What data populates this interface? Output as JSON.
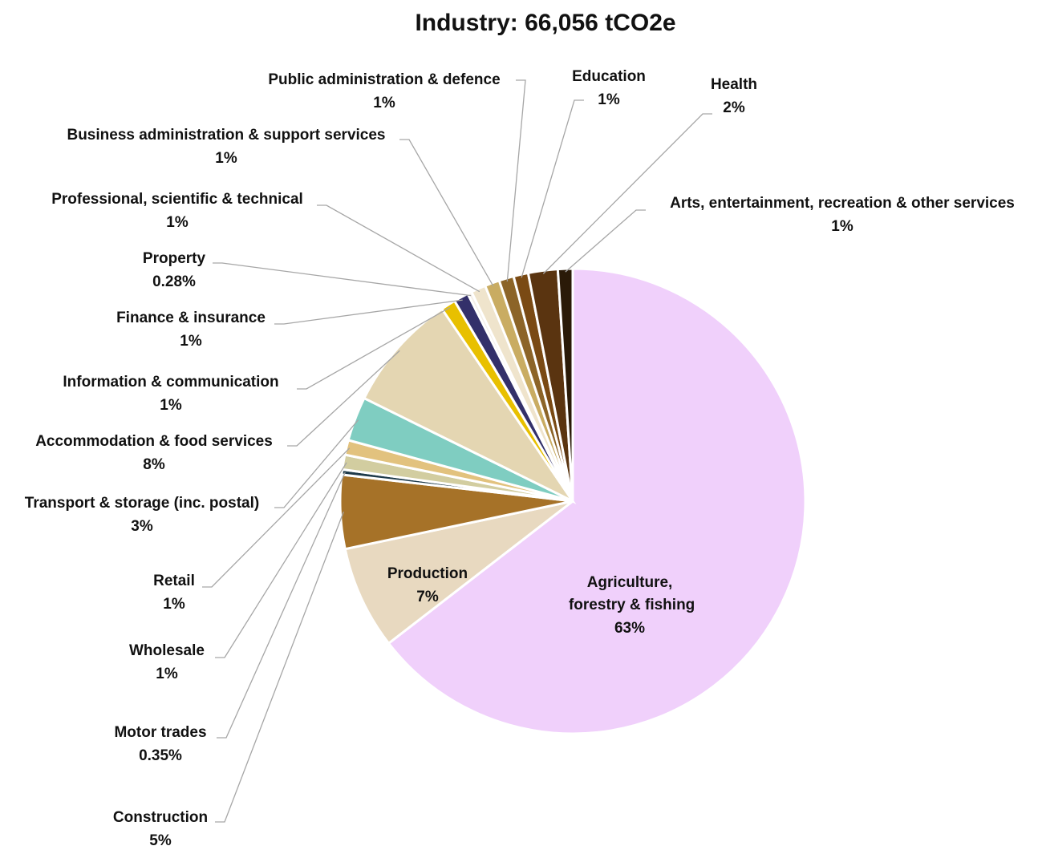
{
  "chart_data": {
    "type": "pie",
    "title": "Industry: 66,056 tCO2e",
    "categories": [
      "Agriculture, forestry & fishing",
      "Production",
      "Construction",
      "Motor trades",
      "Wholesale",
      "Retail",
      "Transport & storage (inc. postal)",
      "Accommodation & food services",
      "Information & communication",
      "Finance & insurance",
      "Property",
      "Professional, scientific & technical",
      "Business administration & support services",
      "Public administration & defence",
      "Education",
      "Health",
      "Arts, entertainment, recreation & other services"
    ],
    "values": [
      63,
      7,
      5,
      0.35,
      1,
      1,
      3,
      8,
      1,
      1,
      0.28,
      1,
      1,
      1,
      1,
      2,
      1
    ],
    "value_labels": [
      "63%",
      "7%",
      "5%",
      "0.35%",
      "1%",
      "1%",
      "3%",
      "8%",
      "1%",
      "1%",
      "0.28%",
      "1%",
      "1%",
      "1%",
      "1%",
      "2%",
      "1%"
    ],
    "colors": [
      "#f0d0fb",
      "#e8d9c0",
      "#a67228",
      "#1e3a4a",
      "#d2cda0",
      "#e2c27e",
      "#7fcdc1",
      "#e4d6b2",
      "#e8c000",
      "#33306a",
      "#f5f0e8",
      "#efe4cc",
      "#c9ac62",
      "#8c6428",
      "#7a4a14",
      "#5a3410",
      "#2a1a08"
    ]
  }
}
